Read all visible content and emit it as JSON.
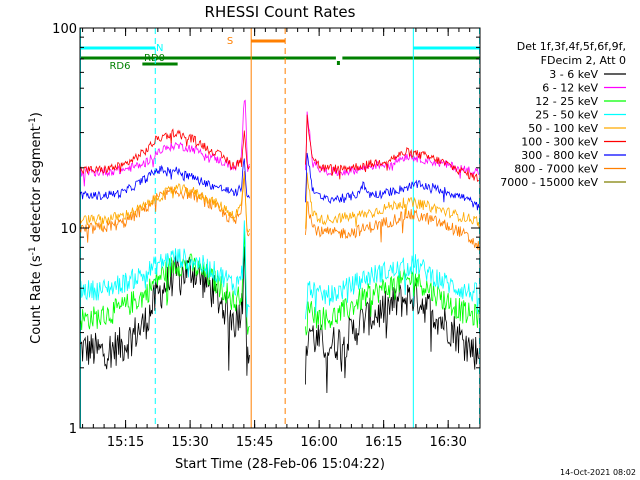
{
  "chart_data": {
    "type": "line",
    "title": "RHESSI Count Rates",
    "xlabel": "Start Time (28-Feb-06 15:04:22)",
    "ylabel_main": "Count Rate (s",
    "ylabel_sup1": "-1",
    "ylabel_mid": " detector segment",
    "ylabel_sup2": "-1",
    "ylabel_end": ")",
    "y_scale": "log",
    "ylim": [
      1,
      100
    ],
    "xlim_minutes": [
      0,
      93
    ],
    "x_tick_labels": [
      {
        "label": "15:15",
        "minute": 10.6
      },
      {
        "label": "15:30",
        "minute": 25.6
      },
      {
        "label": "15:45",
        "minute": 40.6
      },
      {
        "label": "16:00",
        "minute": 55.6
      },
      {
        "label": "16:15",
        "minute": 70.6
      },
      {
        "label": "16:30",
        "minute": 85.6
      }
    ],
    "y_tick_labels": [
      {
        "label": "1",
        "value": 1
      },
      {
        "label": "10",
        "value": 10
      },
      {
        "label": "100",
        "value": 100
      }
    ],
    "legend": {
      "header1": "Det 1f,3f,4f,5f,6f,9f,",
      "header2": "FDecim 2, Att 0",
      "position": "right"
    },
    "series": [
      {
        "name": "3 - 6 keV",
        "color": "#000000",
        "points": [
          [
            0,
            2.5
          ],
          [
            5,
            2.4
          ],
          [
            10,
            2.6
          ],
          [
            15,
            3.3
          ],
          [
            18,
            4.6
          ],
          [
            22,
            5.8
          ],
          [
            26,
            6.2
          ],
          [
            30,
            5.1
          ],
          [
            34,
            3.9
          ],
          [
            36,
            3.4
          ],
          [
            37.8,
            4.2
          ],
          [
            38.2,
            10
          ],
          [
            38.8,
            2.2
          ],
          [
            39.5,
            2
          ],
          [
            52.5,
            2
          ],
          [
            53.2,
            3.2
          ],
          [
            55,
            2.7
          ],
          [
            58,
            2.6
          ],
          [
            62,
            2.8
          ],
          [
            66,
            3.5
          ],
          [
            70,
            3.8
          ],
          [
            74,
            4.3
          ],
          [
            78,
            4.6
          ],
          [
            82,
            3.8
          ],
          [
            86,
            3.2
          ],
          [
            90,
            2.6
          ],
          [
            93,
            2.3
          ]
        ]
      },
      {
        "name": "6 - 12 keV",
        "color": "#ff00ff",
        "points": [
          [
            0,
            19
          ],
          [
            5,
            19
          ],
          [
            10,
            19.5
          ],
          [
            15,
            21
          ],
          [
            18,
            24
          ],
          [
            22,
            26
          ],
          [
            26,
            25
          ],
          [
            30,
            23
          ],
          [
            34,
            21
          ],
          [
            36,
            20
          ],
          [
            37.5,
            22
          ],
          [
            38,
            38
          ],
          [
            38.4,
            46
          ],
          [
            38.9,
            20
          ],
          [
            39.5,
            20
          ],
          [
            52.5,
            20
          ],
          [
            52.8,
            40
          ],
          [
            54,
            22
          ],
          [
            56,
            19.5
          ],
          [
            60,
            19
          ],
          [
            64,
            19.5
          ],
          [
            68,
            20.5
          ],
          [
            72,
            21
          ],
          [
            76,
            23
          ],
          [
            80,
            22
          ],
          [
            84,
            21
          ],
          [
            88,
            20
          ],
          [
            93,
            19
          ]
        ]
      },
      {
        "name": "12 - 25 keV",
        "color": "#00ff00",
        "points": [
          [
            0,
            3.5
          ],
          [
            5,
            3.6
          ],
          [
            10,
            4
          ],
          [
            15,
            4.6
          ],
          [
            18,
            5.6
          ],
          [
            22,
            6.6
          ],
          [
            26,
            6.5
          ],
          [
            30,
            5.7
          ],
          [
            34,
            4.8
          ],
          [
            36,
            4.2
          ],
          [
            37.8,
            5
          ],
          [
            38.2,
            11
          ],
          [
            38.8,
            3
          ],
          [
            39.5,
            3
          ],
          [
            52.5,
            3
          ],
          [
            53.2,
            4.2
          ],
          [
            55,
            3.6
          ],
          [
            58,
            3.5
          ],
          [
            62,
            3.9
          ],
          [
            66,
            4.5
          ],
          [
            70,
            4.9
          ],
          [
            74,
            5.3
          ],
          [
            78,
            5.6
          ],
          [
            82,
            4.8
          ],
          [
            86,
            4.2
          ],
          [
            90,
            3.7
          ],
          [
            93,
            3.6
          ]
        ]
      },
      {
        "name": "25 - 50 keV",
        "color": "#00ffff",
        "points": [
          [
            0,
            4.9
          ],
          [
            5,
            4.9
          ],
          [
            10,
            5.3
          ],
          [
            15,
            5.9
          ],
          [
            18,
            6.6
          ],
          [
            22,
            7.2
          ],
          [
            26,
            6.9
          ],
          [
            30,
            6.3
          ],
          [
            34,
            5.6
          ],
          [
            36,
            5.1
          ],
          [
            37.8,
            6
          ],
          [
            38.2,
            12
          ],
          [
            38.8,
            3.8
          ],
          [
            39.5,
            3.8
          ],
          [
            52.5,
            3.8
          ],
          [
            53.2,
            5.2
          ],
          [
            55,
            4.6
          ],
          [
            58,
            4.6
          ],
          [
            62,
            5
          ],
          [
            66,
            5.6
          ],
          [
            70,
            6
          ],
          [
            74,
            6.2
          ],
          [
            78,
            6.6
          ],
          [
            82,
            5.8
          ],
          [
            86,
            5.2
          ],
          [
            90,
            4.8
          ],
          [
            93,
            4.7
          ]
        ]
      },
      {
        "name": "50 - 100 keV",
        "color": "#ffaa00",
        "points": [
          [
            0,
            11
          ],
          [
            5,
            11
          ],
          [
            10,
            11.5
          ],
          [
            15,
            12.8
          ],
          [
            18,
            14.2
          ],
          [
            22,
            15.8
          ],
          [
            26,
            15.3
          ],
          [
            30,
            13.9
          ],
          [
            34,
            12.4
          ],
          [
            36,
            11.5
          ],
          [
            37.5,
            13
          ],
          [
            38.2,
            19
          ],
          [
            38.8,
            10
          ],
          [
            39.5,
            10
          ],
          [
            52.5,
            10
          ],
          [
            52.8,
            18
          ],
          [
            54,
            12
          ],
          [
            56,
            11
          ],
          [
            60,
            11.2
          ],
          [
            64,
            11.5
          ],
          [
            68,
            12
          ],
          [
            72,
            12.8
          ],
          [
            76,
            13.5
          ],
          [
            80,
            13
          ],
          [
            84,
            12.3
          ],
          [
            88,
            11.5
          ],
          [
            93,
            10.8
          ]
        ]
      },
      {
        "name": "100 - 300 keV",
        "color": "#ff0000",
        "points": [
          [
            0,
            19.5
          ],
          [
            5,
            19.5
          ],
          [
            10,
            20.5
          ],
          [
            15,
            24
          ],
          [
            18,
            28
          ],
          [
            22,
            30
          ],
          [
            26,
            28
          ],
          [
            30,
            25
          ],
          [
            34,
            22
          ],
          [
            36,
            20.5
          ],
          [
            37.5,
            22
          ],
          [
            38.2,
            30
          ],
          [
            38.9,
            20
          ],
          [
            39.5,
            20
          ],
          [
            52.5,
            20
          ],
          [
            52.8,
            36
          ],
          [
            54,
            23
          ],
          [
            56,
            20
          ],
          [
            60,
            19.8
          ],
          [
            64,
            20.2
          ],
          [
            68,
            21
          ],
          [
            72,
            22
          ],
          [
            76,
            24
          ],
          [
            80,
            23
          ],
          [
            84,
            21.5
          ],
          [
            88,
            19.5
          ],
          [
            93,
            17.5
          ]
        ]
      },
      {
        "name": "300 - 800 keV",
        "color": "#0000ff",
        "points": [
          [
            0,
            14.5
          ],
          [
            5,
            14.5
          ],
          [
            10,
            15
          ],
          [
            15,
            17.5
          ],
          [
            18,
            19.5
          ],
          [
            22,
            19.5
          ],
          [
            26,
            18
          ],
          [
            30,
            16.5
          ],
          [
            34,
            15.5
          ],
          [
            36,
            14.8
          ],
          [
            37.5,
            16
          ],
          [
            38.2,
            22
          ],
          [
            38.9,
            14
          ],
          [
            39.5,
            14
          ],
          [
            52.5,
            14
          ],
          [
            52.8,
            24
          ],
          [
            54,
            16
          ],
          [
            56,
            14
          ],
          [
            60,
            14
          ],
          [
            64,
            14.5
          ],
          [
            66,
            16.5
          ],
          [
            67,
            14.8
          ],
          [
            70,
            14.8
          ],
          [
            74,
            15.5
          ],
          [
            78,
            16.5
          ],
          [
            82,
            16
          ],
          [
            86,
            15
          ],
          [
            90,
            14
          ],
          [
            93,
            12.5
          ]
        ]
      },
      {
        "name": "800 - 7000 keV",
        "color": "#ff7f00",
        "points": [
          [
            0,
            9.8
          ],
          [
            5,
            10
          ],
          [
            10,
            10.6
          ],
          [
            15,
            12.5
          ],
          [
            18,
            14.2
          ],
          [
            22,
            15.2
          ],
          [
            26,
            14.8
          ],
          [
            30,
            13.3
          ],
          [
            34,
            11.6
          ],
          [
            36,
            10.7
          ],
          [
            37.5,
            12
          ],
          [
            38.2,
            18
          ],
          [
            38.9,
            9.5
          ],
          [
            39.5,
            9.5
          ],
          [
            52.5,
            9.5
          ],
          [
            52.8,
            14
          ],
          [
            54,
            10.2
          ],
          [
            56,
            9.5
          ],
          [
            60,
            9.4
          ],
          [
            64,
            9.6
          ],
          [
            68,
            10.2
          ],
          [
            72,
            10.8
          ],
          [
            76,
            11.7
          ],
          [
            80,
            11.3
          ],
          [
            84,
            10.5
          ],
          [
            88,
            9.7
          ],
          [
            93,
            8
          ]
        ]
      },
      {
        "name": "7000 - 15000 keV",
        "color": "#7f7f00",
        "points": []
      }
    ],
    "attenuator_bars": [
      {
        "label": "N",
        "color": "#00ffff",
        "segments": [
          [
            0,
            17.5
          ],
          [
            77.5,
            93
          ]
        ]
      },
      {
        "label": "RD0",
        "color": "#008000",
        "segments": [
          [
            0,
            59.5
          ],
          [
            61,
            93
          ]
        ]
      },
      {
        "label": "RD6",
        "color": "#008000",
        "segments": [
          [
            14.5,
            22.7
          ]
        ]
      },
      {
        "label": "S",
        "color": "#ff7f00",
        "segments": [
          [
            39.8,
            47.7
          ]
        ]
      }
    ],
    "vertical_markers": [
      {
        "minute": 0,
        "color": "#00ffff",
        "style": "solid"
      },
      {
        "minute": 17.5,
        "color": "#00ffff",
        "style": "dashed"
      },
      {
        "minute": 39.8,
        "color": "#ff7f00",
        "style": "solid"
      },
      {
        "minute": 47.7,
        "color": "#ff7f00",
        "style": "dashed"
      },
      {
        "minute": 77.5,
        "color": "#00ffff",
        "style": "solid"
      },
      {
        "minute": 93,
        "color": "#00ffff",
        "style": "dashed"
      }
    ]
  },
  "footer": {
    "timestamp": "14-Oct-2021 08:02"
  }
}
